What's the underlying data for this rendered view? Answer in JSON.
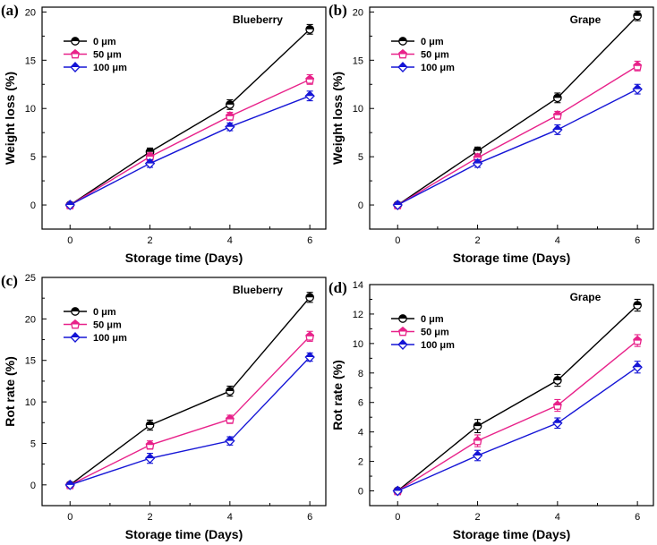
{
  "colors": {
    "s0": "#000000",
    "s50": "#e8228a",
    "s100": "#1515d6"
  },
  "chart_data": [
    {
      "type": "line",
      "panel_label": "(a)",
      "title": "Blueberry",
      "xlabel": "Storage time (Days)",
      "ylabel": "Weight loss (%)",
      "x": [
        0,
        2,
        4,
        6
      ],
      "x_tick_labels": [
        "0",
        "2",
        "4",
        "6"
      ],
      "xlim": [
        -0.7,
        6.4
      ],
      "ylim": [
        -2.5,
        20.5
      ],
      "y_ticks": [
        0,
        5,
        10,
        15,
        20
      ],
      "y_tick_labels": [
        "0",
        "5",
        "10",
        "15",
        "20"
      ],
      "legend_position": "top-left",
      "series": [
        {
          "name": "0 μm",
          "values": [
            0,
            5.5,
            10.4,
            18.2
          ],
          "errors": [
            0,
            0.4,
            0.5,
            0.5
          ]
        },
        {
          "name": "50 μm",
          "values": [
            0,
            5.0,
            9.2,
            13.0
          ],
          "errors": [
            0,
            0.4,
            0.4,
            0.5
          ]
        },
        {
          "name": "100 μm",
          "values": [
            0,
            4.3,
            8.1,
            11.3
          ],
          "errors": [
            0,
            0.4,
            0.4,
            0.5
          ]
        }
      ]
    },
    {
      "type": "line",
      "panel_label": "(b)",
      "title": "Grape",
      "xlabel": "Storage time (Days)",
      "ylabel": "Weight loss (%)",
      "x": [
        0,
        2,
        4,
        6
      ],
      "x_tick_labels": [
        "0",
        "2",
        "4",
        "6"
      ],
      "xlim": [
        -0.7,
        6.4
      ],
      "ylim": [
        -2.5,
        20.5
      ],
      "y_ticks": [
        0,
        5,
        10,
        15,
        20
      ],
      "y_tick_labels": [
        "0",
        "5",
        "10",
        "15",
        "20"
      ],
      "legend_position": "top-left",
      "series": [
        {
          "name": "0 μm",
          "values": [
            0,
            5.6,
            11.1,
            19.6
          ],
          "errors": [
            0,
            0.4,
            0.5,
            0.5
          ]
        },
        {
          "name": "50 μm",
          "values": [
            0,
            4.9,
            9.3,
            14.4
          ],
          "errors": [
            0,
            0.4,
            0.4,
            0.5
          ]
        },
        {
          "name": "100 μm",
          "values": [
            0,
            4.3,
            7.8,
            12.0
          ],
          "errors": [
            0,
            0.4,
            0.5,
            0.5
          ]
        }
      ]
    },
    {
      "type": "line",
      "panel_label": "(c)",
      "title": "Blueberry",
      "xlabel": "Storage time (Days)",
      "ylabel": "Rot rate (%)",
      "x": [
        0,
        2,
        4,
        6
      ],
      "x_tick_labels": [
        "0",
        "2",
        "4",
        "6"
      ],
      "xlim": [
        -0.7,
        6.4
      ],
      "ylim": [
        -2.5,
        25
      ],
      "y_ticks": [
        0,
        5,
        10,
        15,
        20,
        25
      ],
      "y_tick_labels": [
        "0",
        "5",
        "10",
        "15",
        "20",
        "25"
      ],
      "legend_position": "top-left",
      "series": [
        {
          "name": "0 μm",
          "values": [
            0,
            7.2,
            11.3,
            22.6
          ],
          "errors": [
            0,
            0.6,
            0.6,
            0.6
          ]
        },
        {
          "name": "50 μm",
          "values": [
            0,
            4.8,
            7.9,
            17.9
          ],
          "errors": [
            0,
            0.5,
            0.5,
            0.6
          ]
        },
        {
          "name": "100 μm",
          "values": [
            0,
            3.2,
            5.3,
            15.4
          ],
          "errors": [
            0,
            0.6,
            0.5,
            0.5
          ]
        }
      ]
    },
    {
      "type": "line",
      "panel_label": "(d)",
      "title": "Grape",
      "xlabel": "Storage time (Days)",
      "ylabel": "Rot rate (%)",
      "x": [
        0,
        2,
        4,
        6
      ],
      "x_tick_labels": [
        "0",
        "2",
        "4",
        "6"
      ],
      "xlim": [
        -0.7,
        6.4
      ],
      "ylim": [
        -1,
        14
      ],
      "y_ticks": [
        0,
        2,
        4,
        6,
        8,
        10,
        12,
        14
      ],
      "y_tick_labels": [
        "0",
        "2",
        "4",
        "6",
        "8",
        "10",
        "12",
        "14"
      ],
      "legend_position": "top-left",
      "series": [
        {
          "name": "0 μm",
          "values": [
            0,
            4.4,
            7.5,
            12.6
          ],
          "errors": [
            0,
            0.45,
            0.4,
            0.4
          ]
        },
        {
          "name": "50 μm",
          "values": [
            0,
            3.4,
            5.8,
            10.2
          ],
          "errors": [
            0,
            0.4,
            0.4,
            0.4
          ]
        },
        {
          "name": "100 μm",
          "values": [
            0,
            2.4,
            4.6,
            8.4
          ],
          "errors": [
            0,
            0.35,
            0.35,
            0.4
          ]
        }
      ]
    }
  ]
}
